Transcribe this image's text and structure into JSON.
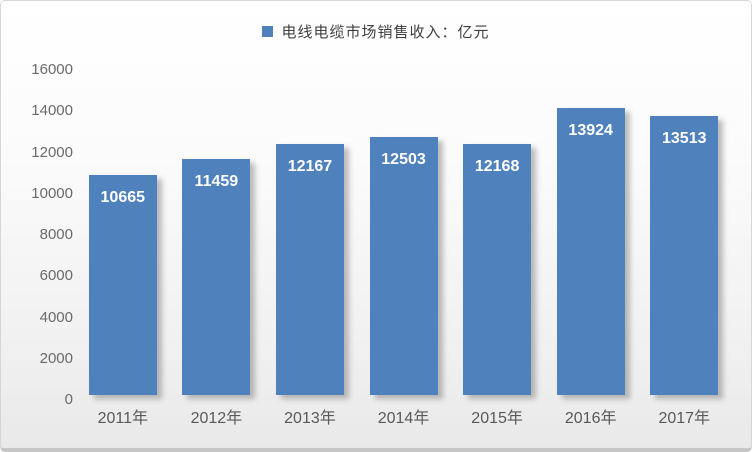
{
  "chart_data": {
    "type": "bar",
    "title": "",
    "legend": "电线电缆市场销售收入：亿元",
    "categories": [
      "2011年",
      "2012年",
      "2013年",
      "2014年",
      "2015年",
      "2016年",
      "2017年"
    ],
    "values": [
      10665,
      11459,
      12167,
      12503,
      12168,
      13924,
      13513
    ],
    "xlabel": "",
    "ylabel": "",
    "ylim": [
      0,
      16000
    ],
    "yticks": [
      0,
      2000,
      4000,
      6000,
      8000,
      10000,
      12000,
      14000,
      16000
    ],
    "grid": false,
    "data_labels": true,
    "legend_position": "top-center",
    "colors": {
      "bar": "#4F81BD",
      "bar_value_label": "#FFFFFF",
      "axis_text": "#6A6A6A",
      "x_axis_text": "#595959",
      "legend_text": "#3F3F3F",
      "frame_border": "#D6D6D6",
      "background_top": "#FFFFFF",
      "background_bottom": "#E9E9E9"
    }
  }
}
